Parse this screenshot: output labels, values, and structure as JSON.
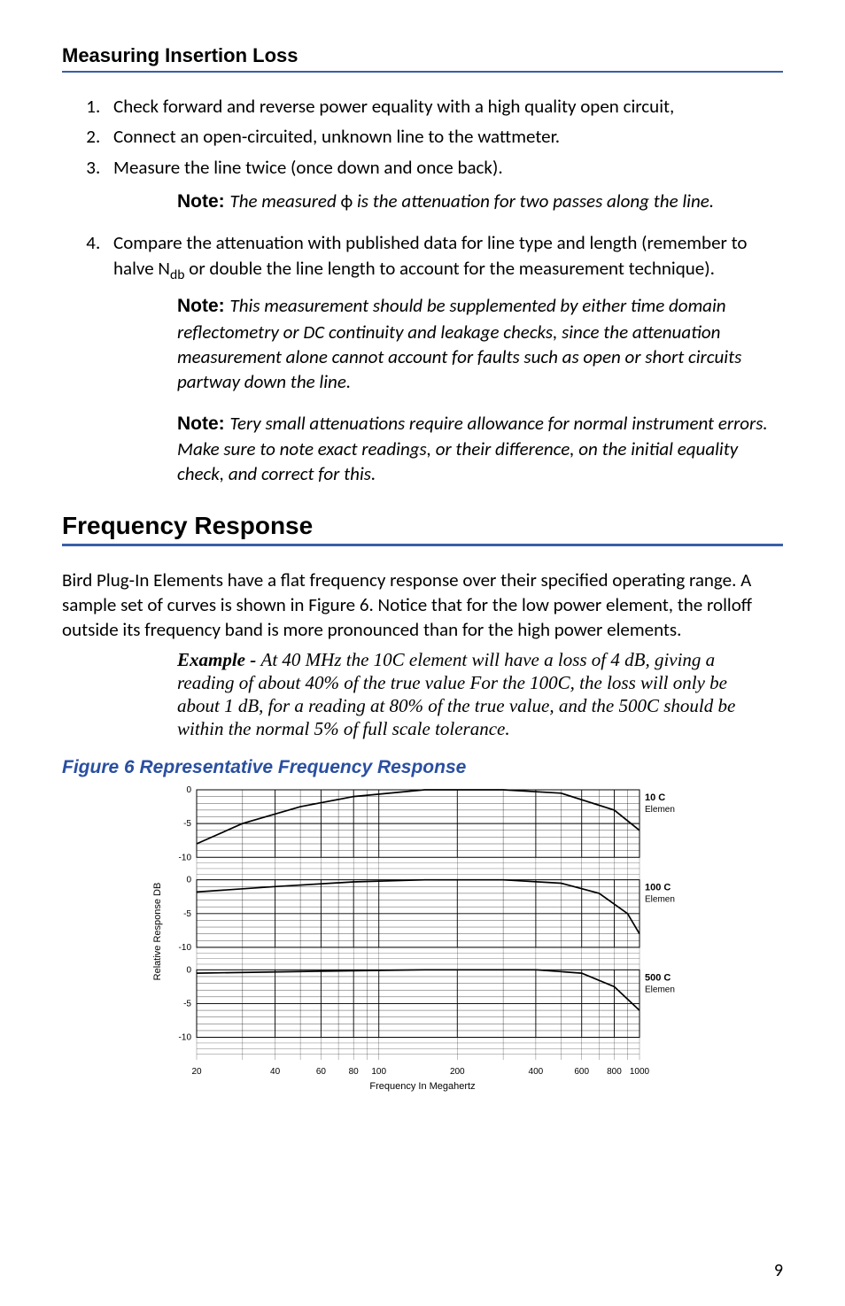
{
  "headings": {
    "insertion_loss": "Measuring Insertion Loss",
    "freq_response": "Frequency Response"
  },
  "steps": {
    "s1": "Check forward and reverse power equality with a high quality open circuit,",
    "s2": "Connect an open-circuited, unknown line to the wattmeter.",
    "s3": "Measure the line twice (once down and once back).",
    "s4a": "Compare the attenuation with published data for line type and length (remember to halve N",
    "s4b": " or double the line length to account for the mea­surement technique).",
    "s4sub": "db"
  },
  "notes": {
    "label": "Note:  ",
    "n1a": "The measured ",
    "n1phi": "ϕ",
    "n1b": " is the attenuation for two passes along the line.",
    "n2": "This measurement should be supplemented by either time domain reflectometry or DC continuity and leakage checks, since the attenuation measurement alone cannot account for faults such as open or short circuits partway down the line.",
    "n3": "Tery small attenuations require allowance for normal instru­ment errors. Make sure to note exact readings, or their difference, on the initial equality check, and correct for this."
  },
  "paragraph": "Bird Plug-In Elements have a flat frequency response over their specified operat­ing range. A sample set of curves is shown in Figure 6. Notice that for the low power element, the rolloff outside its frequency band is more pronounced than for the high power elements.",
  "example": {
    "label": "Example - ",
    "body": "At 40 MHz the 10C element will have a loss of 4 dB, giving a reading of about 40% of the true value For the 100C, the loss will only be about 1 dB, for a reading at 80% of the true value, and the 500C should be within the nor­mal 5% of full scale tolerance."
  },
  "figure": {
    "caption": "Figure 6    Representative Frequency Response",
    "y_axis_label": "Relative Response DB",
    "x_axis_label": "Frequency In Megahertz",
    "plot": {
      "y_ticks": [
        "0",
        "-5",
        "-10"
      ],
      "x_ticks": [
        {
          "val": 20,
          "label": "20"
        },
        {
          "val": 40,
          "label": "40"
        },
        {
          "val": 60,
          "label": "60"
        },
        {
          "val": 80,
          "label": "80"
        },
        {
          "val": 100,
          "label": "100"
        },
        {
          "val": 200,
          "label": "200"
        },
        {
          "val": 400,
          "label": "400"
        },
        {
          "val": 600,
          "label": "600"
        },
        {
          "val": 800,
          "label": "800"
        },
        {
          "val": 1000,
          "label": "1000"
        }
      ],
      "panels": [
        {
          "label_top": "10 C",
          "label_bot": "Elemen",
          "curve": [
            [
              20,
              -8
            ],
            [
              30,
              -5
            ],
            [
              50,
              -2.5
            ],
            [
              80,
              -1
            ],
            [
              150,
              0
            ],
            [
              300,
              0
            ],
            [
              500,
              -0.5
            ],
            [
              800,
              -3
            ],
            [
              1000,
              -6
            ]
          ]
        },
        {
          "label_top": "100 C",
          "label_bot": "Elemen",
          "curve": [
            [
              20,
              -1.8
            ],
            [
              40,
              -1
            ],
            [
              80,
              -0.3
            ],
            [
              150,
              0
            ],
            [
              300,
              0
            ],
            [
              500,
              -0.5
            ],
            [
              700,
              -2
            ],
            [
              900,
              -5
            ],
            [
              1000,
              -8
            ]
          ]
        },
        {
          "label_top": "500 C",
          "label_bot": "Elemen",
          "curve": [
            [
              20,
              -0.5
            ],
            [
              60,
              -0.2
            ],
            [
              150,
              0
            ],
            [
              400,
              0
            ],
            [
              600,
              -0.5
            ],
            [
              800,
              -2.5
            ],
            [
              1000,
              -6
            ]
          ]
        }
      ],
      "font_size_axis": 10,
      "font_size_label": 11,
      "grid_color": "#000000",
      "curve_color": "#000000",
      "background": "#ffffff"
    }
  },
  "page_number": "9"
}
